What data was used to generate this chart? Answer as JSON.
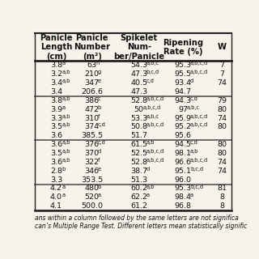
{
  "col_headers": [
    "Panicle\nLength\n(cm)",
    "Panicle\nNumber\n(m²)",
    "Spikelet\nNum-\nber/Panicle",
    "Ripening\nRate (%)",
    "W"
  ],
  "groups": [
    [
      [
        "3.8",
        "a",
        "63",
        "h",
        "54.3",
        "a,b,c",
        "95.3",
        "a,b,c,d",
        "7"
      ],
      [
        "3.2",
        "a,b",
        "210",
        "g",
        "47.3",
        "b,c,d",
        "95.5",
        "a,b,c,d",
        "7"
      ],
      [
        "3.4",
        "a,b",
        "347",
        "e",
        "40.5",
        "c,d",
        "93.4",
        "d",
        "74"
      ],
      [
        "3.4",
        "",
        "206.6",
        "",
        "47.3",
        "",
        "94.7",
        "",
        ""
      ]
    ],
    [
      [
        "3.8",
        "a,b",
        "386",
        "c",
        "52.8",
        "a,b,c,d",
        "94.3",
        "c,d",
        "79"
      ],
      [
        "3.9",
        "a",
        "472",
        "b",
        "50",
        "a,b,c,d",
        "97",
        "a,b,c",
        "80"
      ],
      [
        "3.3",
        "a,b",
        "310",
        "f",
        "53.3",
        "a,b,c",
        "95.9",
        "a,b,c,d",
        "74"
      ],
      [
        "3.5",
        "a,b",
        "374",
        "c,d",
        "50.8",
        "a,b,c,d",
        "95.2",
        "a,b,c,d",
        "80"
      ],
      [
        "3.6",
        "",
        "385.5",
        "",
        "51.7",
        "",
        "95.6",
        "",
        ""
      ]
    ],
    [
      [
        "3.6",
        "a,b",
        "376",
        "c,d",
        "61.5",
        "a,b",
        "94.5",
        "c,d",
        "80"
      ],
      [
        "3.5",
        "a,b",
        "370",
        "d",
        "52.5",
        "a,b,c,d",
        "98.1",
        "a,b",
        "80"
      ],
      [
        "3.6",
        "a,b",
        "322",
        "f",
        "52.8",
        "a,b,c,d",
        "96.6",
        "a,b,c,d",
        "74"
      ],
      [
        "2.8",
        "b",
        "346",
        "e",
        "38.7",
        "d",
        "95.1",
        "b,c,d",
        "74"
      ],
      [
        "3.3",
        "",
        "353.5",
        "",
        "51.3",
        "",
        "96.0",
        "",
        ""
      ]
    ],
    [
      [
        "4.2",
        "a",
        "480",
        "b",
        "60.2",
        "a,b",
        "95.3",
        "b,c,d",
        "81"
      ],
      [
        "4.0",
        "a",
        "520",
        "a",
        "62.2",
        "a",
        "98.4",
        "a",
        "8"
      ],
      [
        "4.1",
        "",
        "500.0",
        "",
        "61.2",
        "",
        "96.8",
        "",
        "8"
      ]
    ]
  ],
  "footnote1": "ans within a column followed by the same letters are not significa",
  "footnote2": "can’s Multiple Range Test. Different letters mean statistically signific",
  "bg_color": "#f7f2ea",
  "header_line_color": "#222222",
  "group_line_color": "#555555",
  "text_color": "#111111",
  "font_size": 6.8,
  "sup_font_size": 4.8,
  "header_font_size": 7.2
}
